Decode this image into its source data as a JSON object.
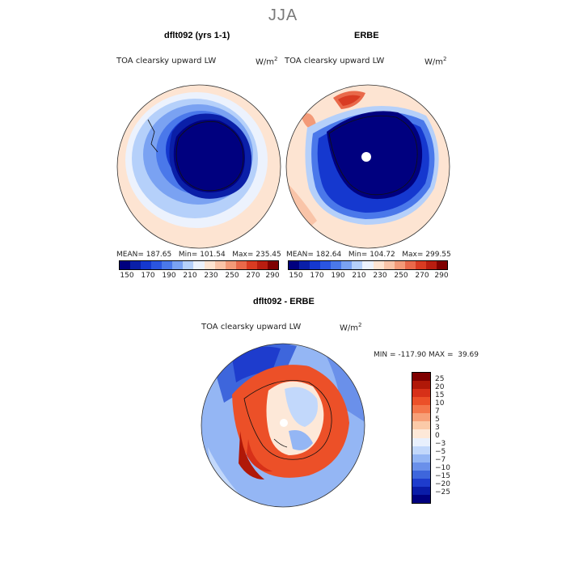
{
  "page_title": "JJA",
  "panels": [
    {
      "title": "dflt092 (yrs 1-1)",
      "variable": "TOA clearsky upward LW",
      "unit_base": "W/m",
      "unit_sup": "2",
      "stats": "MEAN= 187.65   Min= 101.54   Max= 235.45"
    },
    {
      "title": "ERBE",
      "variable": "TOA clearsky upward LW",
      "unit_base": "W/m",
      "unit_sup": "2",
      "stats": "MEAN= 182.64   Min= 104.72   Max= 299.55"
    }
  ],
  "diff_panel": {
    "title": "dflt092 - ERBE",
    "variable": "TOA clearsky upward LW",
    "unit_base": "W/m",
    "unit_sup": "2",
    "stats": "MIN = -117.90 MAX =  39.69"
  },
  "abs_colorbar": {
    "colors": [
      "#00007f",
      "#0a1fa8",
      "#1538cf",
      "#2a55e0",
      "#4a78ea",
      "#7aa2f2",
      "#b5d0fa",
      "#ecf2fd",
      "#fde4d2",
      "#f9c4a8",
      "#f39a78",
      "#e9694a",
      "#d93b22",
      "#b91d10",
      "#7f0000"
    ],
    "labels": [
      "150",
      "170",
      "190",
      "210",
      "230",
      "250",
      "270",
      "290"
    ]
  },
  "diff_colorbar": {
    "colors": [
      "#7f0000",
      "#b01808",
      "#d73018",
      "#ec5028",
      "#f4764a",
      "#f7a078",
      "#fbcaa8",
      "#fde8d8",
      "#e8f0fd",
      "#c2d8fb",
      "#94b6f4",
      "#6a90ea",
      "#3e66dc",
      "#1e3ccd",
      "#0a1ca8",
      "#00007f"
    ],
    "labels": [
      "25",
      "20",
      "15",
      "10",
      "7",
      "5",
      "3",
      "0",
      "−3",
      "−5",
      "−7",
      "−10",
      "−15",
      "−20",
      "−25"
    ]
  }
}
